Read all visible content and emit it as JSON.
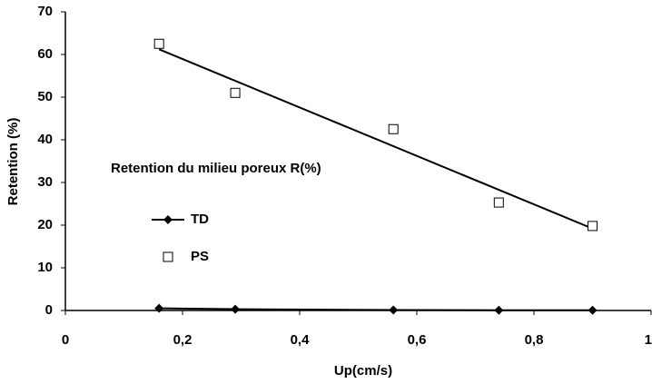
{
  "chart_data": {
    "type": "scatter",
    "annotation": "Retention du milieu poreux  R(%)",
    "x_label": "Up(cm/s)",
    "y_label": "Retention (%)",
    "xlim": [
      0,
      1
    ],
    "xticks": [
      0,
      {
        "value": 0.2,
        "label": "0,2"
      },
      {
        "value": 0.4,
        "label": "0,4"
      },
      {
        "value": 0.6,
        "label": "0,6"
      },
      {
        "value": 0.8,
        "label": "0,8"
      },
      1
    ],
    "ylim": [
      0,
      70
    ],
    "yticks": [
      0,
      10,
      20,
      30,
      40,
      50,
      60,
      70
    ],
    "series": [
      {
        "name": "TD",
        "color": "#000000",
        "marker": "diamond",
        "line": true,
        "x": [
          0.16,
          0.29,
          0.56,
          0.74,
          0.9
        ],
        "values": [
          0.5,
          0.3,
          0.1,
          0.05,
          0.05
        ]
      },
      {
        "name": "PS",
        "color": "#000000",
        "marker": "square",
        "line": false,
        "x": [
          0.16,
          0.29,
          0.56,
          0.74,
          0.9
        ],
        "values": [
          62.5,
          51,
          42.5,
          25.3,
          19.8
        ]
      }
    ],
    "trendline": {
      "x": [
        0.16,
        0.9
      ],
      "values": [
        61.2,
        19.2
      ],
      "color": "#000000"
    }
  }
}
